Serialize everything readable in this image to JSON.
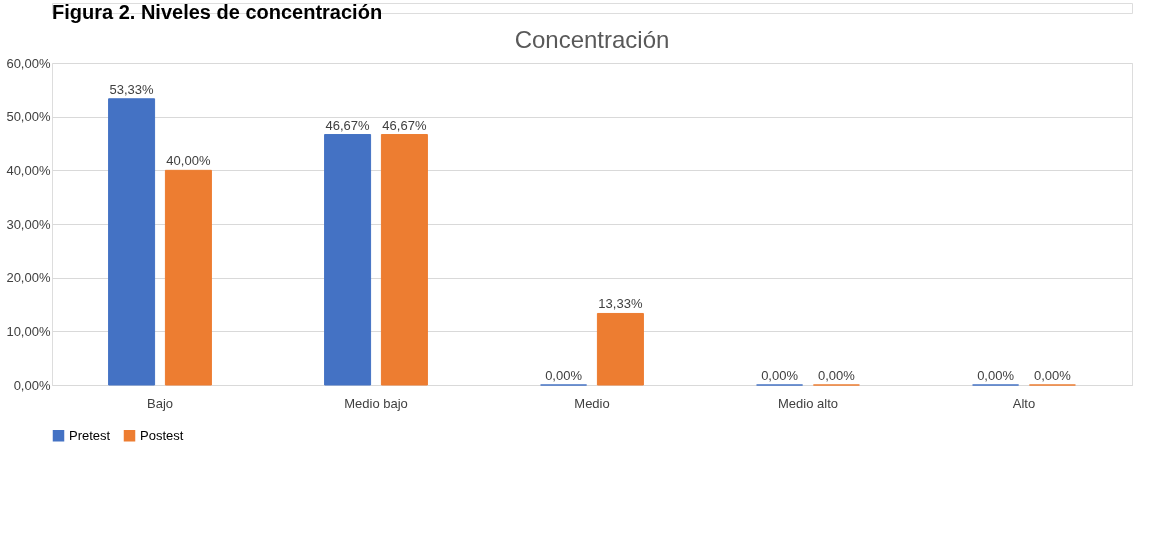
{
  "chart_data": {
    "type": "bar",
    "title": "Concentración",
    "annotations": [
      "Figura 2. Niveles de concentración"
    ],
    "categories": [
      "Bajo",
      "Medio bajo",
      "Medio",
      "Medio alto",
      "Alto"
    ],
    "series": [
      {
        "name": "Pretest",
        "color": "#4472c4",
        "values": [
          53.33,
          46.67,
          0,
          0,
          0
        ],
        "value_labels": [
          "53,33%",
          "46,67%",
          "0,00%",
          "0,00%",
          "0,00%"
        ]
      },
      {
        "name": "Postest",
        "color": "#ed7d31",
        "values": [
          40,
          46.67,
          13.33,
          0,
          0
        ],
        "value_labels": [
          "40,00%",
          "46,67%",
          "13,33%",
          "0,00%",
          "0,00%"
        ]
      }
    ],
    "ylim": [
      0,
      60
    ],
    "yticks": [
      {
        "value": 0,
        "label": "0,00%"
      },
      {
        "value": 10,
        "label": "10,00%"
      },
      {
        "value": 20,
        "label": "20,00%"
      },
      {
        "value": 30,
        "label": "30,00%"
      },
      {
        "value": 40,
        "label": "40,00%"
      },
      {
        "value": 50,
        "label": "50,00%"
      },
      {
        "value": 60,
        "label": "60,00%"
      }
    ],
    "grid": "y",
    "legend": "bottom"
  }
}
